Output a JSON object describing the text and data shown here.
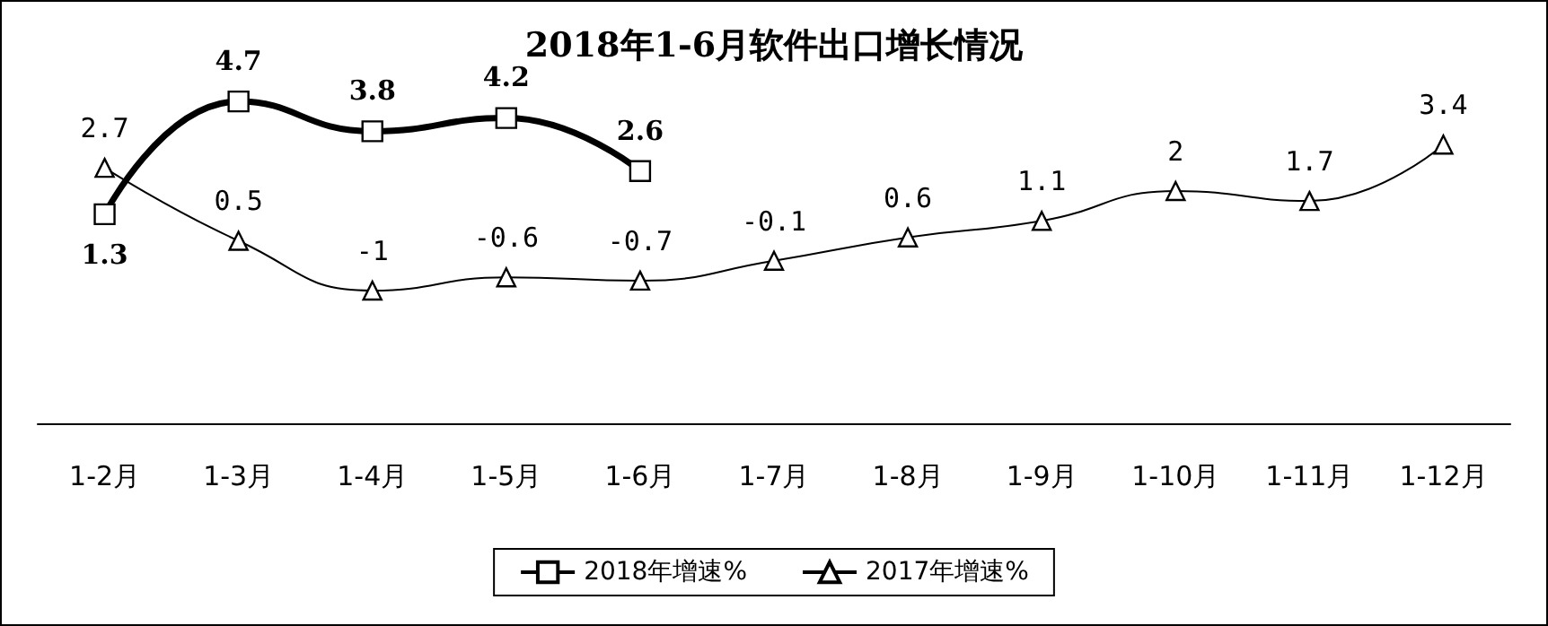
{
  "chart_data": {
    "type": "line",
    "title": "2018年1-6月软件出口增长情况",
    "categories": [
      "1-2月",
      "1-3月",
      "1-4月",
      "1-5月",
      "1-6月",
      "1-7月",
      "1-8月",
      "1-9月",
      "1-10月",
      "1-11月",
      "1-12月"
    ],
    "series": [
      {
        "name": "2018年增速%",
        "color": "#000000",
        "marker": "square",
        "values": [
          1.3,
          4.7,
          3.8,
          4.2,
          2.6,
          null,
          null,
          null,
          null,
          null,
          null
        ]
      },
      {
        "name": "2017年增速%",
        "color": "#000000",
        "marker": "triangle",
        "values": [
          2.7,
          0.5,
          -1,
          -0.6,
          -0.7,
          -0.1,
          0.6,
          1.1,
          2,
          1.7,
          3.4
        ]
      }
    ],
    "data_labels": true,
    "legend": "bottom",
    "grid": false,
    "tick_labels": "x"
  }
}
